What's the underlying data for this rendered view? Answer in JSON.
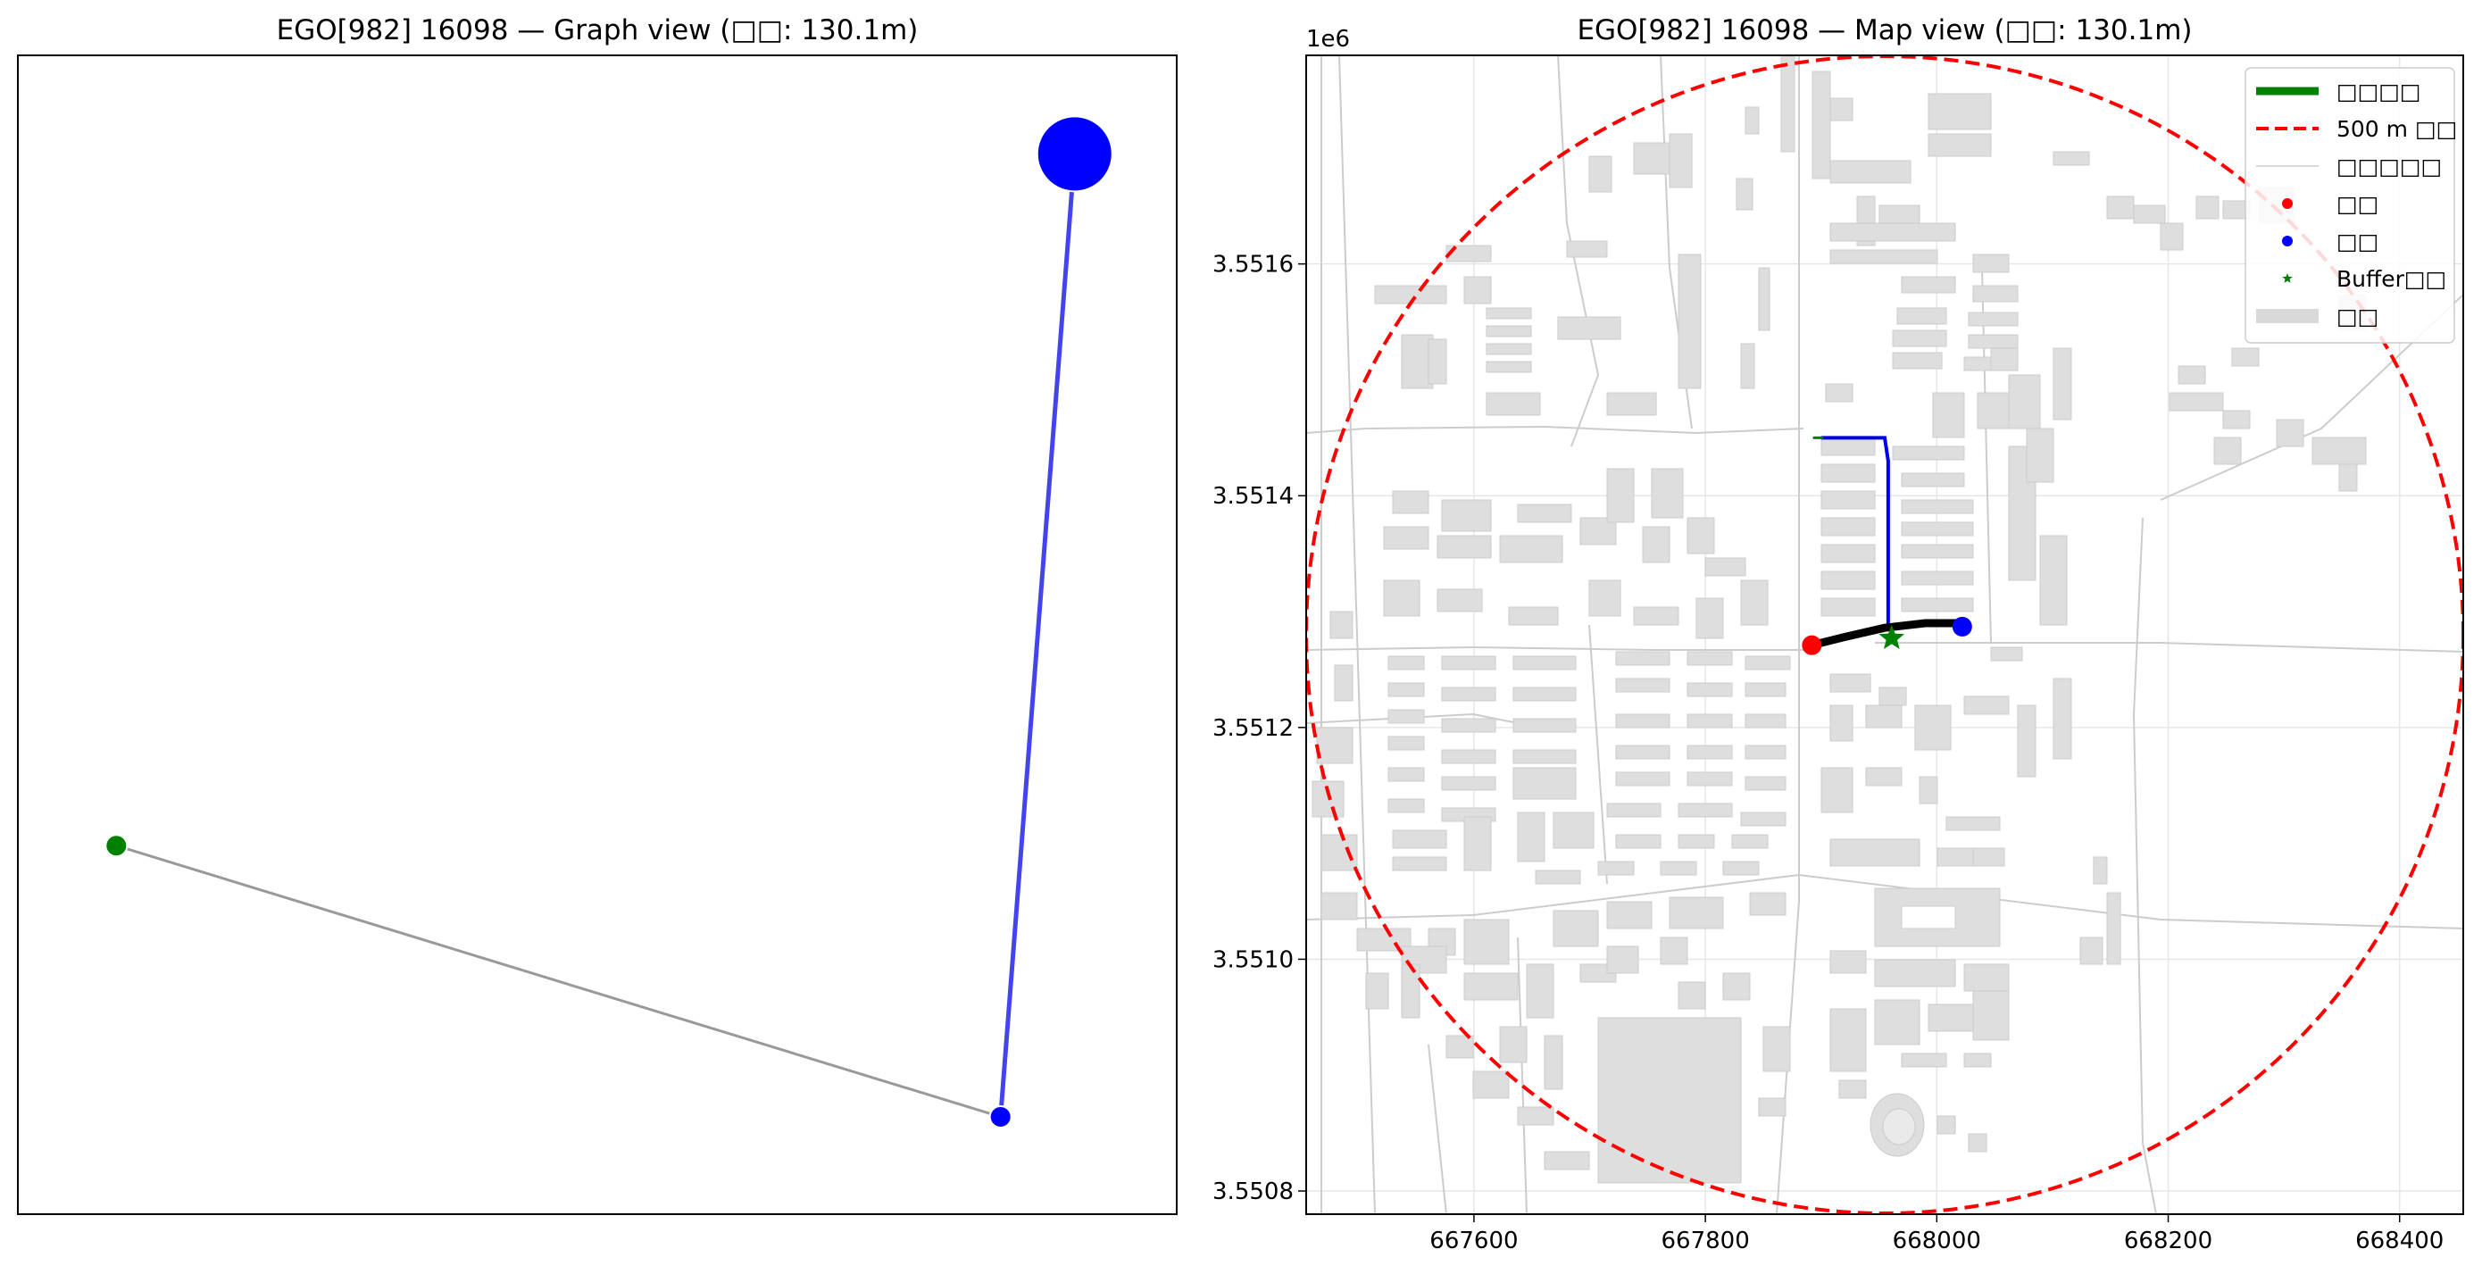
{
  "chart_data": [
    {
      "type": "scatter",
      "title": "EGO[982] 16098 — Graph view (□□: 130.1m)",
      "grid": false,
      "xlim": [
        0,
        1
      ],
      "ylim": [
        0,
        1
      ],
      "edges": [
        {
          "from": 0,
          "to": 1,
          "color": "#999999"
        },
        {
          "from": 1,
          "to": 2,
          "color": "#4444ee"
        }
      ],
      "nodes": [
        {
          "x": 0.085,
          "y": 0.318,
          "color": "#008000",
          "size": "small"
        },
        {
          "x": 0.848,
          "y": 0.084,
          "color": "#0000ff",
          "size": "small"
        },
        {
          "x": 0.912,
          "y": 0.915,
          "color": "#0000ff",
          "size": "large"
        }
      ]
    },
    {
      "type": "map",
      "title": "EGO[982] 16098 — Map view (□□: 130.1m)",
      "offset_label": "1e6",
      "grid": true,
      "xlim": [
        667455,
        668455
      ],
      "ylim": [
        3.55078,
        3.55178
      ],
      "xticks": [
        "667600",
        "667800",
        "668000",
        "668200",
        "668400"
      ],
      "yticks": [
        "3.5508",
        "3.5510",
        "3.5512",
        "3.5514",
        "3.5516"
      ],
      "legend_position": "upper right",
      "legend": [
        {
          "label": "□□□□",
          "kind": "line-thick",
          "color": "#008000"
        },
        {
          "label": "500 m □□",
          "kind": "line-dashed",
          "color": "#ff0000"
        },
        {
          "label": "□□□□□",
          "kind": "line-thin",
          "color": "#cccccc"
        },
        {
          "label": "□□",
          "kind": "dot",
          "color": "#ff0000"
        },
        {
          "label": "□□",
          "kind": "dot",
          "color": "#0000ff"
        },
        {
          "label": "Buffer□□",
          "kind": "star",
          "color": "#008000"
        },
        {
          "label": "□□",
          "kind": "patch",
          "color": "#d9d9d9"
        }
      ],
      "buffer_circle": {
        "center": [
          667955,
          3.55128
        ],
        "radius_m": 500,
        "color": "#ff0000"
      },
      "route_black": [
        [
          667892,
          3.551271
        ],
        [
          667920,
          3.551278
        ],
        [
          667955,
          3.551286
        ],
        [
          667990,
          3.55129
        ],
        [
          668020,
          3.55129
        ]
      ],
      "route_blue": [
        [
          667958,
          3.551285
        ],
        [
          667958,
          3.55143
        ],
        [
          667955,
          3.55145
        ],
        [
          667900,
          3.55145
        ]
      ],
      "route_green_stub": [
        [
          667893,
          3.55145
        ],
        [
          667902,
          3.55145
        ]
      ],
      "start_point": {
        "x": 667892,
        "y": 3.551271,
        "color": "#ff0000"
      },
      "end_point": {
        "x": 668022,
        "y": 3.551287,
        "color": "#0000ff"
      },
      "buffer_center_marker": {
        "x": 667961,
        "y": 3.551277,
        "color": "#008000"
      }
    }
  ]
}
